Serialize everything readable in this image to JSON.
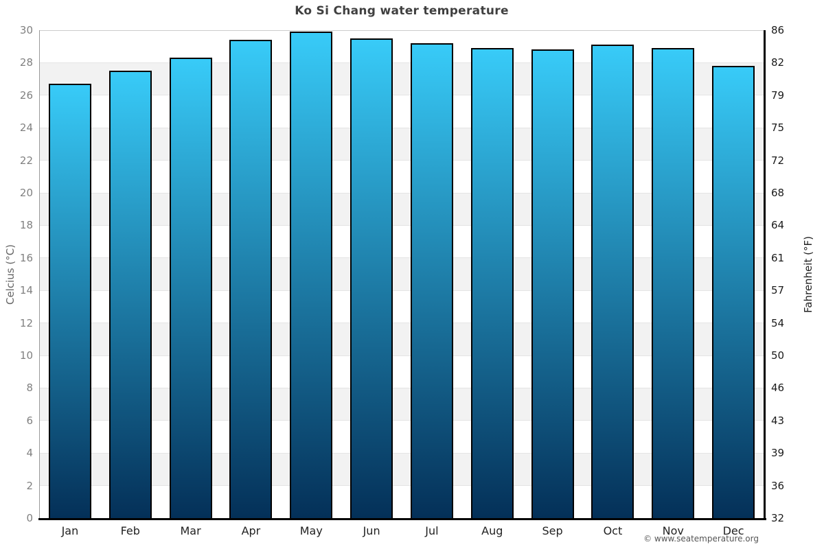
{
  "title": "Ko Si Chang water temperature",
  "footer": "© www.seatemperature.org",
  "chart_data": {
    "type": "bar",
    "title": "Ko Si Chang water temperature",
    "categories": [
      "Jan",
      "Feb",
      "Mar",
      "Apr",
      "May",
      "Jun",
      "Jul",
      "Aug",
      "Sep",
      "Oct",
      "Nov",
      "Dec"
    ],
    "series": [
      {
        "name": "Water temperature (°C)",
        "values": [
          26.7,
          27.5,
          28.3,
          29.4,
          29.9,
          29.5,
          29.2,
          28.9,
          28.8,
          29.1,
          28.9,
          27.8
        ]
      }
    ],
    "xlabel": "",
    "ylabel_left": "Celcius (°C)",
    "ylabel_right": "Fahrenheit (°F)",
    "ylim_celsius": [
      0,
      30
    ],
    "celsius_ticks": [
      0,
      2,
      4,
      6,
      8,
      10,
      12,
      14,
      16,
      18,
      20,
      22,
      24,
      26,
      28,
      30
    ],
    "fahrenheit_ticks": [
      32,
      36,
      39,
      43,
      46,
      50,
      54,
      57,
      61,
      64,
      68,
      72,
      75,
      79,
      82,
      86
    ],
    "legend": "none",
    "grid": "alternating horizontal bands every 2°C",
    "colors": {
      "bar_gradient_top": "#38cbf8",
      "bar_gradient_bottom": "#043058",
      "bar_border": "#000000",
      "band_gray": "#f2f2f2",
      "band_white": "#ffffff",
      "grid_line": "#e4e4e4",
      "plot_top_border": "#cccccc",
      "left_axis_line": "#999999",
      "right_axis_line": "#000000",
      "bottom_axis_line": "#000000",
      "title_text": "#404040",
      "left_tick_text": "#808080",
      "right_tick_text": "#1a1a1a",
      "month_text": "#222222",
      "footer_text": "#555555",
      "axis_title_left_text": "#666666",
      "axis_title_right_text": "#222222"
    }
  }
}
